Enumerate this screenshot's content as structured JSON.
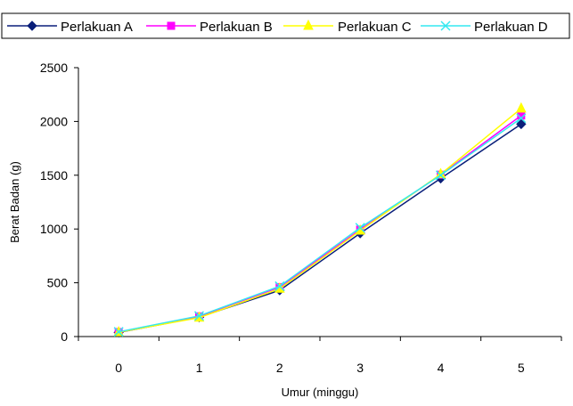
{
  "chart_data": {
    "type": "line",
    "title": "",
    "xlabel": "Umur (minggu)",
    "ylabel": "Berat Badan (g)",
    "categories": [
      "0",
      "1",
      "2",
      "3",
      "4",
      "5"
    ],
    "ylim": [
      0,
      2500
    ],
    "yticks": [
      "0",
      "500",
      "1000",
      "1500",
      "2000",
      "2500"
    ],
    "grid": false,
    "legend_position": "top",
    "series": [
      {
        "name": "Perlakuan A",
        "color": "#0a1f7a",
        "marker": "diamond",
        "values": [
          38,
          180,
          430,
          960,
          1470,
          1975
        ]
      },
      {
        "name": "Perlakuan B",
        "color": "#ff00ff",
        "marker": "square",
        "values": [
          42,
          188,
          460,
          995,
          1505,
          2055
        ]
      },
      {
        "name": "Perlakuan C",
        "color": "#ffff00",
        "marker": "triangle",
        "values": [
          40,
          176,
          445,
          985,
          1510,
          2120
        ]
      },
      {
        "name": "Perlakuan D",
        "color": "#33e8f0",
        "marker": "x",
        "values": [
          44,
          192,
          468,
          1012,
          1500,
          2030
        ]
      }
    ]
  }
}
